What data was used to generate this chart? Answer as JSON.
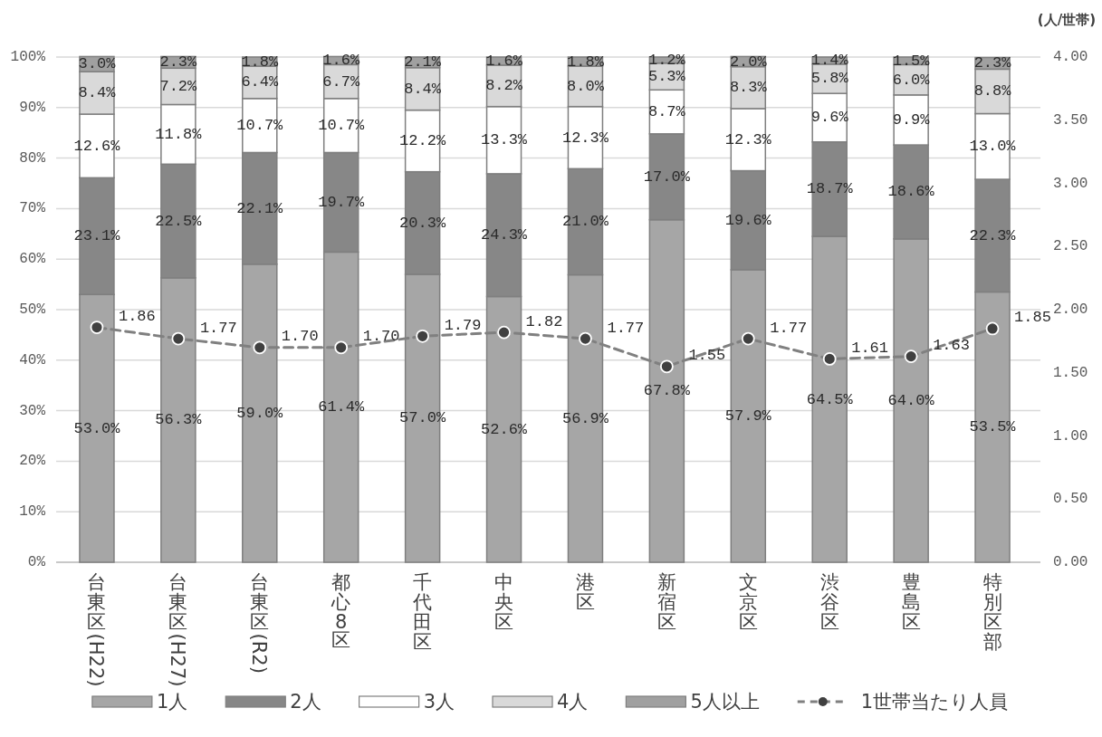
{
  "chart_data": {
    "type": "bar",
    "stacked": true,
    "categories": [
      "台東区(H22)",
      "台東区(H27)",
      "台東区(R2)",
      "都心8区",
      "千代田区",
      "中央区",
      "港区",
      "新宿区",
      "文京区",
      "渋谷区",
      "豊島区",
      "特別区部"
    ],
    "series": [
      {
        "name": "1人",
        "color": "#a6a6a6",
        "values": [
          53.0,
          56.3,
          59.0,
          61.4,
          57.0,
          52.6,
          56.9,
          67.8,
          57.9,
          64.5,
          64.0,
          53.5
        ],
        "value_labels": [
          "53.0%",
          "56.3%",
          "59.0%",
          "61.4%",
          "57.0%",
          "52.6%",
          "56.9%",
          "67.8%",
          "57.9%",
          "64.5%",
          "64.0%",
          "53.5%"
        ]
      },
      {
        "name": "2人",
        "color": "#878787",
        "values": [
          23.1,
          22.5,
          22.1,
          19.7,
          20.3,
          24.3,
          21.0,
          17.0,
          19.6,
          18.7,
          18.6,
          22.3
        ],
        "value_labels": [
          "23.1%",
          "22.5%",
          "22.1%",
          "19.7%",
          "20.3%",
          "24.3%",
          "21.0%",
          "17.0%",
          "19.6%",
          "18.7%",
          "18.6%",
          "22.3%"
        ]
      },
      {
        "name": "3人",
        "color": "#ffffff",
        "values": [
          12.6,
          11.8,
          10.7,
          10.7,
          12.2,
          13.3,
          12.3,
          8.7,
          12.3,
          9.6,
          9.9,
          13.0
        ],
        "value_labels": [
          "12.6%",
          "11.8%",
          "10.7%",
          "10.7%",
          "12.2%",
          "13.3%",
          "12.3%",
          "8.7%",
          "12.3%",
          "9.6%",
          "9.9%",
          "13.0%"
        ]
      },
      {
        "name": "4人",
        "color": "#d9d9d9",
        "values": [
          8.4,
          7.2,
          6.4,
          6.7,
          8.4,
          8.2,
          8.0,
          5.3,
          8.3,
          5.8,
          6.0,
          8.8
        ],
        "value_labels": [
          "8.4%",
          "7.2%",
          "6.4%",
          "6.7%",
          "8.4%",
          "8.2%",
          "8.0%",
          "5.3%",
          "8.3%",
          "5.8%",
          "6.0%",
          "8.8%"
        ]
      },
      {
        "name": "5人以上",
        "color": "#a0a0a0",
        "values": [
          3.0,
          2.3,
          1.8,
          1.6,
          2.1,
          1.6,
          1.8,
          1.2,
          2.0,
          1.4,
          1.5,
          2.3
        ],
        "value_labels": [
          "3.0%",
          "2.3%",
          "1.8%",
          "1.6%",
          "2.1%",
          "1.6%",
          "1.8%",
          "1.2%",
          "2.0%",
          "1.4%",
          "1.5%",
          "2.3%"
        ]
      },
      {
        "name": "1世帯当たり人員",
        "type": "line",
        "axis": "y2",
        "marker": "circle",
        "line_style": "dashed",
        "color": "#808080",
        "colors": [
          "#404040",
          "#404040",
          "#404040",
          "#404040",
          "#404040",
          "#404040",
          "#404040",
          "#404040",
          "#404040",
          "#404040",
          "#404040",
          "#404040"
        ],
        "values": [
          1.86,
          1.77,
          1.7,
          1.7,
          1.79,
          1.82,
          1.77,
          1.55,
          1.77,
          1.61,
          1.63,
          1.85
        ],
        "value_labels": [
          "1.86",
          "1.77",
          "1.70",
          "1.70",
          "1.79",
          "1.82",
          "1.77",
          "1.55",
          "1.77",
          "1.61",
          "1.63",
          "1.85"
        ]
      }
    ],
    "ylim": [
      0,
      100
    ],
    "yticks": [
      {
        "value": 0,
        "label": "0%"
      },
      {
        "value": 10,
        "label": "10%"
      },
      {
        "value": 20,
        "label": "20%"
      },
      {
        "value": 30,
        "label": "30%"
      },
      {
        "value": 40,
        "label": "40%"
      },
      {
        "value": 50,
        "label": "50%"
      },
      {
        "value": 60,
        "label": "60%"
      },
      {
        "value": 70,
        "label": "70%"
      },
      {
        "value": 80,
        "label": "80%"
      },
      {
        "value": 90,
        "label": "90%"
      },
      {
        "value": 100,
        "label": "100%"
      }
    ],
    "y2lim": [
      0,
      4
    ],
    "y2ticks": [
      {
        "value": 0,
        "label": "0.00"
      },
      {
        "value": 0.5,
        "label": "0.50"
      },
      {
        "value": 1,
        "label": "1.00"
      },
      {
        "value": 1.5,
        "label": "1.50"
      },
      {
        "value": 2,
        "label": "2.00"
      },
      {
        "value": 2.5,
        "label": "2.50"
      },
      {
        "value": 3,
        "label": "3.00"
      },
      {
        "value": 3.5,
        "label": "3.50"
      },
      {
        "value": 4,
        "label": "4.00"
      }
    ],
    "y2label": "(人/世帯)",
    "grid": "y",
    "legend": "bottom"
  }
}
